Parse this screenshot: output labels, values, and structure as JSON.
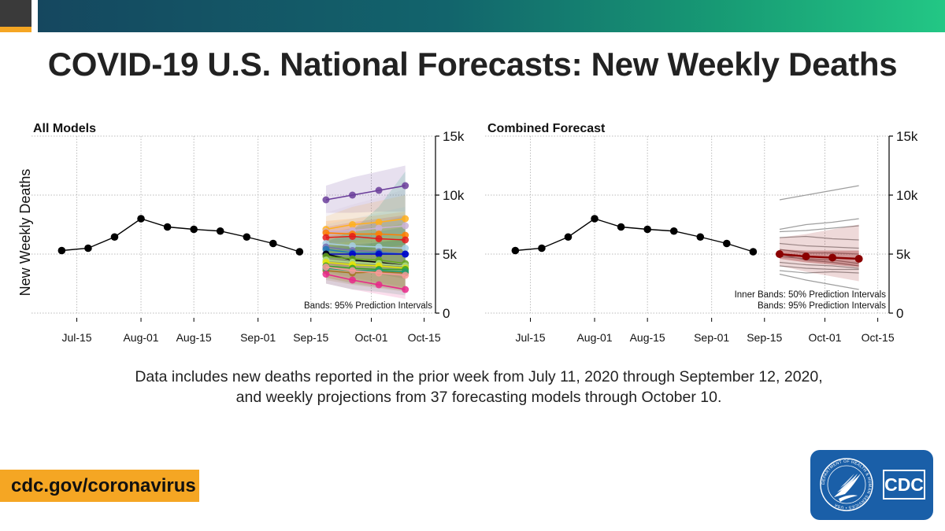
{
  "title": "COVID-19 U.S. National Forecasts: New Weekly Deaths",
  "footnote": [
    "Data includes new deaths reported in the prior week from July 11, 2020 through September 12, 2020,",
    "and weekly projections from 37 forecasting models through October 10."
  ],
  "url": "cdc.gov/coronavirus",
  "logo": {
    "text": "CDC",
    "seal_text": "DEPARTMENT OF HEALTH & HUMAN SERVICES • USA",
    "icon": "hhs-eagle-icon"
  },
  "colors": {
    "observed": "#000000",
    "ensemble": "#8b0000",
    "grid": "#bbbbbb",
    "brand_orange": "#f5a623",
    "logo_blue": "#1a5fa8"
  },
  "chart_data": [
    {
      "type": "line",
      "title": "All Models",
      "ylabel": "New Weekly Deaths",
      "xlabel": "",
      "x_ticks": [
        "Jul-15",
        "Aug-01",
        "Aug-15",
        "Sep-01",
        "Sep-15",
        "Oct-01",
        "Oct-15"
      ],
      "y_ticks": [
        "0",
        "5k",
        "10k",
        "15k"
      ],
      "ylim": [
        0,
        15000
      ],
      "xlim": [
        "2020-07-03",
        "2020-10-18"
      ],
      "grid": true,
      "annotation": "Bands: 95% Prediction Intervals",
      "observed": {
        "x": [
          "2020-07-11",
          "2020-07-18",
          "2020-07-25",
          "2020-08-01",
          "2020-08-08",
          "2020-08-15",
          "2020-08-22",
          "2020-08-29",
          "2020-09-05",
          "2020-09-12"
        ],
        "y": [
          5300,
          5500,
          6450,
          8000,
          7300,
          7100,
          6950,
          6450,
          5900,
          5200
        ]
      },
      "forecast_x": [
        "2020-09-19",
        "2020-09-26",
        "2020-10-03",
        "2020-10-10"
      ],
      "forecasts": [
        {
          "color": "#6a3d9a",
          "values": [
            9600,
            10000,
            10400,
            10800
          ],
          "band": [
            [
              8500,
              10800
            ],
            [
              8500,
              11500
            ],
            [
              8600,
              12000
            ],
            [
              8600,
              12500
            ]
          ]
        },
        {
          "color": "#ffb01f",
          "values": [
            7100,
            7500,
            7700,
            8000
          ],
          "band": [
            [
              6000,
              8200
            ],
            [
              6000,
              9000
            ],
            [
              6000,
              9500
            ],
            [
              6000,
              10000
            ]
          ]
        },
        {
          "color": "#cab2d6",
          "values": [
            6900,
            7000,
            7200,
            7400
          ],
          "band": [
            [
              5500,
              8500
            ],
            [
              5200,
              9200
            ],
            [
              5000,
              9800
            ],
            [
              4800,
              10500
            ]
          ]
        },
        {
          "color": "#ff7f00",
          "values": [
            6800,
            6700,
            6700,
            6600
          ],
          "band": [
            [
              5800,
              7800
            ],
            [
              5500,
              8000
            ],
            [
              5200,
              8300
            ],
            [
              5000,
              8600
            ]
          ]
        },
        {
          "color": "#e31a1c",
          "values": [
            6400,
            6500,
            6300,
            6200
          ],
          "band": [
            [
              5500,
              7300
            ],
            [
              5300,
              7700
            ],
            [
              5000,
              8000
            ],
            [
              4800,
              8300
            ]
          ]
        },
        {
          "color": "#a6cee3",
          "values": [
            5900,
            5700,
            5600,
            5500
          ],
          "band": [
            [
              4500,
              7500
            ],
            [
              4200,
              8000
            ],
            [
              3800,
              8500
            ],
            [
              3500,
              9000
            ]
          ]
        },
        {
          "color": "#7570b3",
          "values": [
            5600,
            5300,
            5200,
            5000
          ],
          "band": [
            [
              4500,
              6800
            ],
            [
              4000,
              7200
            ],
            [
              3700,
              7700
            ],
            [
              3400,
              8200
            ]
          ]
        },
        {
          "color": "#1f78b4",
          "values": [
            5400,
            5100,
            5100,
            5000
          ],
          "band": [
            [
              4600,
              6200
            ],
            [
              4200,
              6500
            ],
            [
              3900,
              6900
            ],
            [
              3600,
              7300
            ]
          ]
        },
        {
          "color": "#0000cc",
          "values": [
            5000,
            5000,
            5000,
            5000
          ],
          "band": [
            [
              4500,
              5600
            ],
            [
              4300,
              5800
            ],
            [
              4100,
              6000
            ],
            [
              3900,
              6200
            ]
          ]
        },
        {
          "color": "#000000",
          "values": [
            5000,
            4500,
            4300,
            4000
          ],
          "band": [
            [
              4200,
              5800
            ],
            [
              3700,
              5600
            ],
            [
              3300,
              5500
            ],
            [
              2900,
              5400
            ]
          ]
        },
        {
          "color": "#66a61e",
          "values": [
            4800,
            4600,
            4500,
            4200
          ],
          "band": [
            [
              3500,
              6500
            ],
            [
              3000,
              6800
            ],
            [
              2600,
              7200
            ],
            [
              2200,
              7600
            ]
          ]
        },
        {
          "color": "#b2df8a",
          "values": [
            4500,
            4300,
            4200,
            4000
          ],
          "band": [
            [
              3200,
              6300
            ],
            [
              2800,
              6800
            ],
            [
              2400,
              7500
            ],
            [
              2000,
              8200
            ]
          ]
        },
        {
          "color": "#e7e300",
          "values": [
            4300,
            4100,
            4000,
            3800
          ],
          "band": [
            [
              3000,
              5800
            ],
            [
              2600,
              6100
            ],
            [
              2300,
              6400
            ],
            [
              2000,
              6800
            ]
          ]
        },
        {
          "color": "#33a02c",
          "values": [
            4000,
            3800,
            3700,
            3700
          ],
          "band": [
            [
              3000,
              5200
            ],
            [
              2500,
              5600
            ],
            [
              2200,
              6000
            ],
            [
              1900,
              6400
            ]
          ]
        },
        {
          "color": "#a6761d",
          "values": [
            3600,
            3400,
            3500,
            3400
          ],
          "band": [
            [
              2800,
              4600
            ],
            [
              2400,
              5000
            ],
            [
              2100,
              5300
            ],
            [
              1800,
              5600
            ]
          ]
        },
        {
          "color": "#1b9e77",
          "values": [
            3800,
            3600,
            3600,
            3500
          ],
          "band": [
            [
              2500,
              6000
            ],
            [
              2000,
              7000
            ],
            [
              1800,
              9000
            ],
            [
              1500,
              12000
            ]
          ]
        },
        {
          "color": "#fb9a99",
          "values": [
            3900,
            3600,
            3400,
            3200
          ],
          "band": [
            [
              3000,
              5000
            ],
            [
              2600,
              5200
            ],
            [
              2200,
              5500
            ],
            [
              1900,
              5800
            ]
          ]
        },
        {
          "color": "#e7298a",
          "values": [
            3300,
            2800,
            2400,
            2000
          ],
          "band": [
            [
              2500,
              4300
            ],
            [
              2000,
              4000
            ],
            [
              1600,
              3700
            ],
            [
              1200,
              3400
            ]
          ]
        }
      ]
    },
    {
      "type": "line",
      "title": "Combined Forecast",
      "ylabel": "",
      "xlabel": "",
      "x_ticks": [
        "Jul-15",
        "Aug-01",
        "Aug-15",
        "Sep-01",
        "Sep-15",
        "Oct-01",
        "Oct-15"
      ],
      "y_ticks": [
        "0",
        "5k",
        "10k",
        "15k"
      ],
      "ylim": [
        0,
        15000
      ],
      "xlim": [
        "2020-07-03",
        "2020-10-18"
      ],
      "grid": true,
      "annotation": [
        "Inner Bands: 50% Prediction Intervals",
        "Bands: 95% Prediction Intervals"
      ],
      "observed": {
        "x": [
          "2020-07-11",
          "2020-07-18",
          "2020-07-25",
          "2020-08-01",
          "2020-08-08",
          "2020-08-15",
          "2020-08-22",
          "2020-08-29",
          "2020-09-05",
          "2020-09-12"
        ],
        "y": [
          5300,
          5500,
          6450,
          8000,
          7300,
          7100,
          6950,
          6450,
          5900,
          5200
        ]
      },
      "forecast_x": [
        "2020-09-19",
        "2020-09-26",
        "2020-10-03",
        "2020-10-10"
      ],
      "ensemble": {
        "color": "#8b0000",
        "values": [
          5000,
          4800,
          4700,
          4600
        ],
        "band95": [
          [
            4000,
            6400
          ],
          [
            3500,
            6700
          ],
          [
            3100,
            7100
          ],
          [
            2700,
            7500
          ]
        ],
        "band50": [
          [
            4600,
            5400
          ],
          [
            4300,
            5300
          ],
          [
            4100,
            5300
          ],
          [
            3900,
            5300
          ]
        ]
      },
      "individual_models_gray": [
        [
          9600,
          10000,
          10400,
          10800
        ],
        [
          7100,
          7500,
          7700,
          8000
        ],
        [
          6900,
          7000,
          7200,
          7400
        ],
        [
          6400,
          6500,
          6300,
          6200
        ],
        [
          5900,
          5700,
          5600,
          5500
        ],
        [
          5400,
          5100,
          5100,
          5000
        ],
        [
          5000,
          4500,
          4300,
          4000
        ],
        [
          4800,
          4600,
          4500,
          4200
        ],
        [
          4300,
          4100,
          4000,
          3800
        ],
        [
          4000,
          3800,
          3700,
          3700
        ],
        [
          3600,
          3400,
          3500,
          3400
        ],
        [
          3300,
          2800,
          2400,
          2000
        ]
      ]
    }
  ]
}
